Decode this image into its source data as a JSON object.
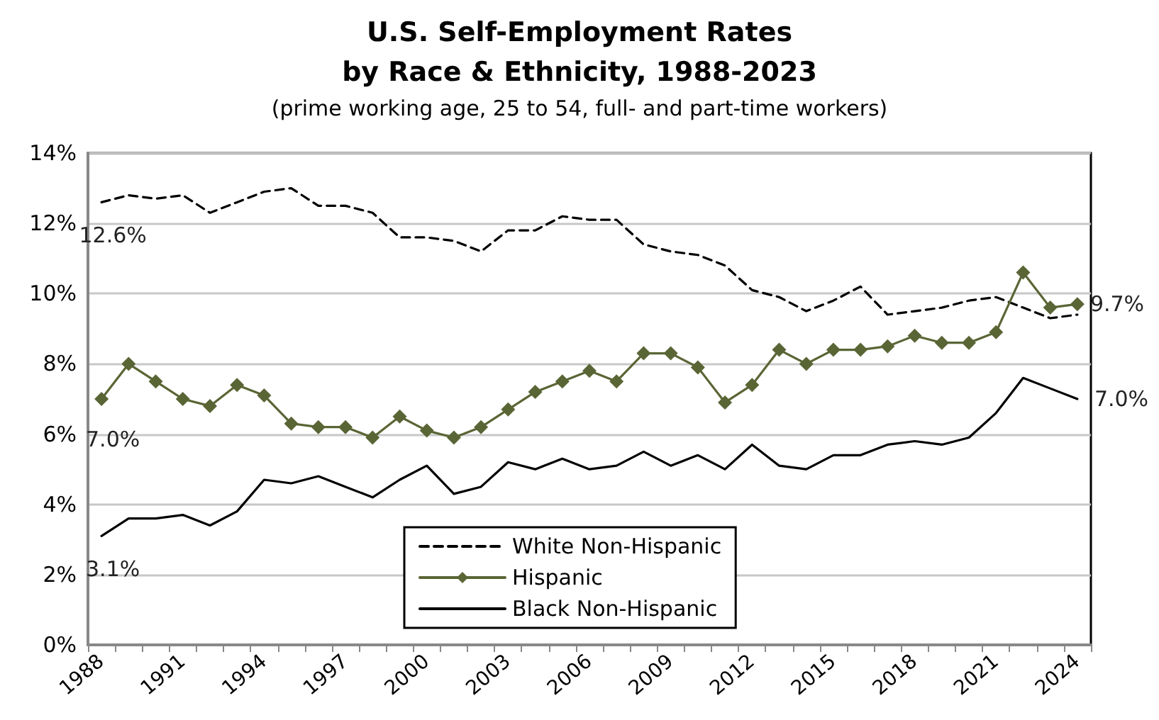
{
  "chart_data": {
    "type": "line",
    "title": "U.S. Self-Employment Rates\nby Race & Ethnicity, 1988-2023",
    "subtitle": "(prime working age, 25 to 54, full- and part-time workers)",
    "categories": [
      "1988",
      null,
      null,
      "1991",
      null,
      null,
      "1994",
      null,
      null,
      "1997",
      null,
      null,
      "2000",
      null,
      null,
      "2003",
      null,
      null,
      "2006",
      null,
      null,
      "2009",
      null,
      null,
      "2012",
      null,
      null,
      "2015",
      null,
      null,
      "2018",
      null,
      null,
      "2021",
      null,
      null,
      "2024"
    ],
    "series": [
      {
        "name": "White Non-Hispanic",
        "color": "#000000",
        "line_style": "dashed",
        "marker": "none",
        "values": [
          12.6,
          12.8,
          12.7,
          12.8,
          12.3,
          12.6,
          12.9,
          13.0,
          12.5,
          12.5,
          12.3,
          11.6,
          11.6,
          11.5,
          11.2,
          11.8,
          11.8,
          12.2,
          12.1,
          12.1,
          11.4,
          11.2,
          11.1,
          10.8,
          10.1,
          9.9,
          9.5,
          9.8,
          10.2,
          9.4,
          9.5,
          9.6,
          9.8,
          9.9,
          9.6,
          9.3,
          9.4
        ],
        "value_labels": [
          "12.6%",
          null,
          null,
          null,
          null,
          null,
          null,
          null,
          null,
          null,
          null,
          null,
          null,
          null,
          null,
          null,
          null,
          null,
          null,
          null,
          null,
          null,
          null,
          null,
          null,
          null,
          null,
          null,
          null,
          null,
          null,
          null,
          null,
          null,
          null,
          null,
          null
        ]
      },
      {
        "name": "Hispanic",
        "color": "#5a6535",
        "line_style": "solid",
        "marker": "diamond",
        "values": [
          7.0,
          8.0,
          7.5,
          7.0,
          6.8,
          7.4,
          7.1,
          6.3,
          6.2,
          6.2,
          5.9,
          6.5,
          6.1,
          5.9,
          6.2,
          6.7,
          7.2,
          7.5,
          7.8,
          7.5,
          8.3,
          8.3,
          7.9,
          6.9,
          7.4,
          8.4,
          8.0,
          8.4,
          8.4,
          8.5,
          8.8,
          8.6,
          8.6,
          8.9,
          10.6,
          9.6,
          9.7
        ],
        "value_labels": [
          "7.0%",
          null,
          null,
          null,
          null,
          null,
          null,
          null,
          null,
          null,
          null,
          null,
          null,
          null,
          null,
          null,
          null,
          null,
          null,
          null,
          null,
          null,
          null,
          null,
          null,
          null,
          null,
          null,
          null,
          null,
          null,
          null,
          null,
          null,
          null,
          null,
          "9.7%"
        ]
      },
      {
        "name": "Black Non-Hispanic",
        "color": "#000000",
        "line_style": "solid",
        "marker": "none",
        "values": [
          3.1,
          3.6,
          3.6,
          3.7,
          3.4,
          3.8,
          4.7,
          4.6,
          4.8,
          4.5,
          4.2,
          4.7,
          5.1,
          4.3,
          4.5,
          5.2,
          5.0,
          5.3,
          5.0,
          5.1,
          5.5,
          5.1,
          5.4,
          5.0,
          5.7,
          5.1,
          5.0,
          5.4,
          5.4,
          5.7,
          5.8,
          5.7,
          5.9,
          6.6,
          7.6,
          7.3,
          7.0
        ],
        "value_labels": [
          "3.1%",
          null,
          null,
          null,
          null,
          null,
          null,
          null,
          null,
          null,
          null,
          null,
          null,
          null,
          null,
          null,
          null,
          null,
          null,
          null,
          null,
          null,
          null,
          null,
          null,
          null,
          null,
          null,
          null,
          null,
          null,
          null,
          null,
          null,
          null,
          null,
          "7.0%"
        ]
      }
    ],
    "ylim": [
      0,
      14
    ],
    "yticks": [
      {
        "value": 0,
        "label": "0%"
      },
      {
        "value": 2,
        "label": "2%"
      },
      {
        "value": 4,
        "label": "4%"
      },
      {
        "value": 6,
        "label": "6%"
      },
      {
        "value": 8,
        "label": "8%"
      },
      {
        "value": 10,
        "label": "10%"
      },
      {
        "value": 12,
        "label": "12%"
      },
      {
        "value": 14,
        "label": "14%"
      }
    ],
    "grid": "y",
    "legend": "bottom"
  }
}
